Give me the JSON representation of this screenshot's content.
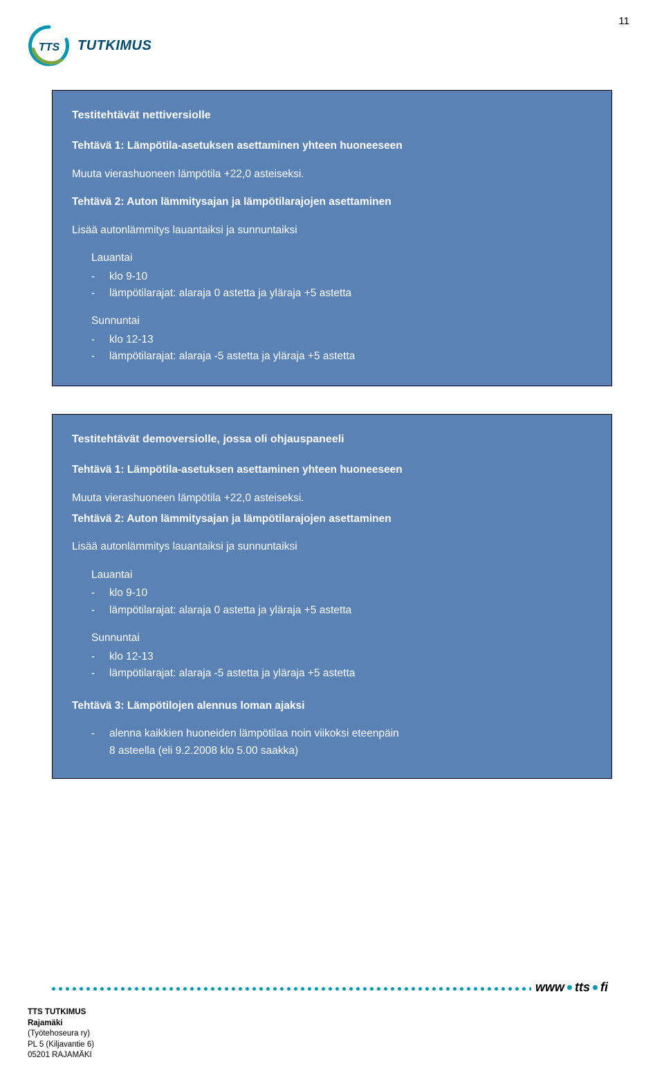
{
  "page_number": "11",
  "logo": {
    "text": "TUTKIMUS",
    "tts": "TTS"
  },
  "colors": {
    "box_bg": "#5a82b4",
    "box_border": "#000000",
    "box_text": "#ffffff",
    "accent_teal": "#0097b2",
    "logo_text": "#004a6e"
  },
  "box1": {
    "title": "Testitehtävät nettiversiolle",
    "task1_title": "Tehtävä 1: Lämpötila-asetuksen asettaminen yhteen huoneeseen",
    "task1_body": "Muuta vierashuoneen lämpötila +22,0 asteiseksi.",
    "task2_title": "Tehtävä 2: Auton lämmitysajan ja lämpötilarajojen asettaminen",
    "task2_body": "Lisää autonlämmitys lauantaiksi ja sunnuntaiksi",
    "lauantai_label": "Lauantai",
    "lauantai_b1": "klo 9-10",
    "lauantai_b2": "lämpötilarajat: alaraja 0 astetta ja yläraja +5 astetta",
    "sunnuntai_label": "Sunnuntai",
    "sunnuntai_b1": "klo 12-13",
    "sunnuntai_b2": "lämpötilarajat: alaraja -5 astetta ja yläraja +5 astetta"
  },
  "box2": {
    "title": "Testitehtävät demoversiolle, jossa oli ohjauspaneeli",
    "task1_title": "Tehtävä 1: Lämpötila-asetuksen asettaminen yhteen huoneeseen",
    "task1_body": "Muuta vierashuoneen lämpötila +22,0 asteiseksi.",
    "task2_title": "Tehtävä 2: Auton lämmitysajan ja lämpötilarajojen asettaminen",
    "task2_body": "Lisää autonlämmitys lauantaiksi ja sunnuntaiksi",
    "lauantai_label": "Lauantai",
    "lauantai_b1": "klo 9-10",
    "lauantai_b2": "lämpötilarajat: alaraja 0 astetta ja yläraja +5 astetta",
    "sunnuntai_label": "Sunnuntai",
    "sunnuntai_b1": "klo 12-13",
    "sunnuntai_b2": "lämpötilarajat: alaraja -5 astetta ja yläraja +5 astetta",
    "task3_title": "Tehtävä 3: Lämpötilojen alennus loman ajaksi",
    "task3_b1": "alenna kaikkien huoneiden lämpötilaa noin viikoksi eteenpäin",
    "task3_line2": "8 asteella (eli 9.2.2008 klo 5.00 saakka)"
  },
  "footer": {
    "url_www": "www",
    "url_tts": "tts",
    "url_fi": "fi",
    "line1": "TTS TUTKIMUS",
    "line2": "Rajamäki",
    "line3": "(Työtehoseura ry)",
    "line4": "PL 5 (Kiljavantie 6)",
    "line5": "05201 RAJAMÄKI"
  }
}
